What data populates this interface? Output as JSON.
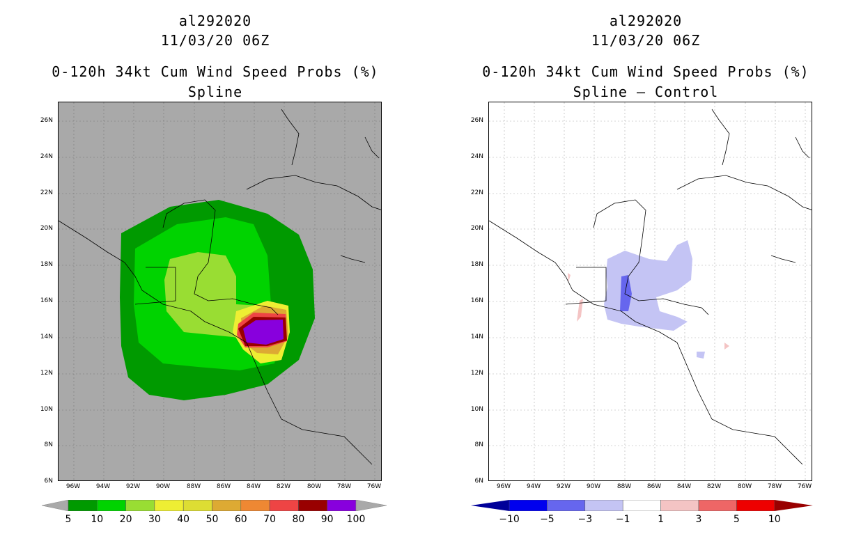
{
  "panels": [
    {
      "storm_id": "al292020",
      "datetime": "11/03/20 06Z",
      "product_title": "0-120h 34kt Cum Wind Speed Probs (%)",
      "subtitle": "Spline",
      "colorbar": {
        "labels": [
          "5",
          "10",
          "20",
          "30",
          "40",
          "50",
          "60",
          "70",
          "80",
          "90",
          "100"
        ],
        "colors": [
          "#009a00",
          "#00d300",
          "#99dd33",
          "#eeee33",
          "#dddd33",
          "#ddaa33",
          "#ee8833",
          "#ee4444",
          "#990000",
          "#8800dd"
        ]
      }
    },
    {
      "storm_id": "al292020",
      "datetime": "11/03/20 06Z",
      "product_title": "0-120h 34kt Cum Wind Speed Probs (%)",
      "subtitle": "Spline — Control",
      "colorbar": {
        "labels": [
          "−10",
          "−5",
          "−3",
          "−1",
          "1",
          "3",
          "5",
          "10"
        ],
        "colors": [
          "#000099",
          "#0000ee",
          "#6666ee",
          "#c4c4f4",
          "#ffffff",
          "#f4c4c4",
          "#ee6666",
          "#ee0000",
          "#990000"
        ]
      }
    }
  ],
  "latitude_labels": [
    "26N",
    "24N",
    "22N",
    "20N",
    "18N",
    "16N",
    "14N",
    "12N",
    "10N",
    "8N",
    "6N"
  ],
  "longitude_labels": [
    "96W",
    "94W",
    "92W",
    "90W",
    "88W",
    "86W",
    "84W",
    "82W",
    "80W",
    "78W",
    "76W"
  ],
  "colors": {
    "background_left": "#a9a9a9",
    "land_outline": "#000000",
    "grid": "#aaaaaa"
  }
}
